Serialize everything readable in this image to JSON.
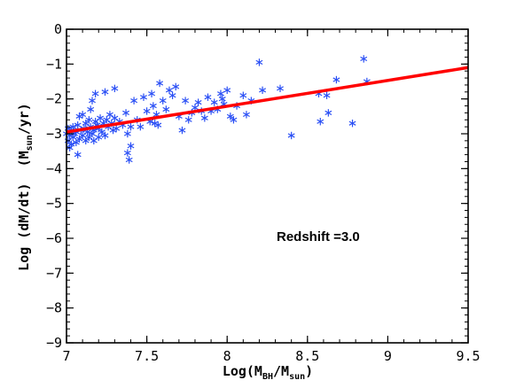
{
  "chart_data": {
    "type": "scatter",
    "x_label": {
      "pre": "Log(M",
      "sub1": "BH",
      "mid": "/M",
      "sub2": "sun",
      "post": ")"
    },
    "y_label": {
      "pre": "Log (dM/dt)  (M",
      "sub": "sun",
      "post": "/yr)"
    },
    "xlim": [
      7,
      9.5
    ],
    "ylim": [
      -9,
      0
    ],
    "x_ticks": [
      {
        "v": 7,
        "t": "7"
      },
      {
        "v": 7.5,
        "t": "7.5"
      },
      {
        "v": 8,
        "t": "8"
      },
      {
        "v": 8.5,
        "t": "8.5"
      },
      {
        "v": 9,
        "t": "9"
      },
      {
        "v": 9.5,
        "t": "9.5"
      }
    ],
    "y_ticks": [
      {
        "v": 0,
        "t": "0"
      },
      {
        "v": -1,
        "t": "−1"
      },
      {
        "v": -2,
        "t": "−2"
      },
      {
        "v": -3,
        "t": "−3"
      },
      {
        "v": -4,
        "t": "−4"
      },
      {
        "v": -5,
        "t": "−5"
      },
      {
        "v": -6,
        "t": "−6"
      },
      {
        "v": -7,
        "t": "−7"
      },
      {
        "v": -8,
        "t": "−8"
      },
      {
        "v": -9,
        "t": "−9"
      }
    ],
    "annotation": "Redshift =3.0",
    "fit_line": {
      "x": [
        7,
        9.5
      ],
      "y": [
        -2.95,
        -1.1
      ],
      "color": "#ff0000"
    },
    "marker_color": "#2a4ff5",
    "line_color": "#ff0000",
    "points": [
      [
        7.0,
        -3.0
      ],
      [
        7.01,
        -3.2
      ],
      [
        7.01,
        -2.85
      ],
      [
        7.02,
        -3.4
      ],
      [
        7.02,
        -3.05
      ],
      [
        7.03,
        -2.9
      ],
      [
        7.03,
        -3.3
      ],
      [
        7.04,
        -3.1
      ],
      [
        7.04,
        -2.8
      ],
      [
        7.05,
        -3.0
      ],
      [
        7.06,
        -3.25
      ],
      [
        7.06,
        -2.95
      ],
      [
        7.07,
        -3.6
      ],
      [
        7.07,
        -2.75
      ],
      [
        7.08,
        -3.15
      ],
      [
        7.08,
        -2.5
      ],
      [
        7.09,
        -2.9
      ],
      [
        7.1,
        -3.05
      ],
      [
        7.1,
        -2.45
      ],
      [
        7.11,
        -2.85
      ],
      [
        7.12,
        -3.2
      ],
      [
        7.12,
        -2.7
      ],
      [
        7.13,
        -2.95
      ],
      [
        7.14,
        -2.6
      ],
      [
        7.14,
        -3.1
      ],
      [
        7.15,
        -2.3
      ],
      [
        7.15,
        -2.8
      ],
      [
        7.16,
        -2.05
      ],
      [
        7.16,
        -3.0
      ],
      [
        7.17,
        -2.9
      ],
      [
        7.17,
        -3.2
      ],
      [
        7.18,
        -1.85
      ],
      [
        7.18,
        -2.65
      ],
      [
        7.19,
        -2.75
      ],
      [
        7.2,
        -3.1
      ],
      [
        7.2,
        -2.85
      ],
      [
        7.21,
        -2.55
      ],
      [
        7.22,
        -2.95
      ],
      [
        7.23,
        -2.7
      ],
      [
        7.24,
        -1.8
      ],
      [
        7.24,
        -3.05
      ],
      [
        7.25,
        -2.6
      ],
      [
        7.26,
        -2.8
      ],
      [
        7.27,
        -2.45
      ],
      [
        7.28,
        -2.7
      ],
      [
        7.29,
        -2.9
      ],
      [
        7.3,
        -1.7
      ],
      [
        7.3,
        -2.55
      ],
      [
        7.31,
        -2.85
      ],
      [
        7.33,
        -2.65
      ],
      [
        7.35,
        -2.75
      ],
      [
        7.37,
        -2.4
      ],
      [
        7.38,
        -3.0
      ],
      [
        7.38,
        -3.55
      ],
      [
        7.39,
        -3.75
      ],
      [
        7.4,
        -3.35
      ],
      [
        7.4,
        -2.8
      ],
      [
        7.42,
        -2.05
      ],
      [
        7.44,
        -2.6
      ],
      [
        7.46,
        -2.8
      ],
      [
        7.48,
        -1.95
      ],
      [
        7.5,
        -2.35
      ],
      [
        7.52,
        -2.65
      ],
      [
        7.53,
        -1.85
      ],
      [
        7.54,
        -2.2
      ],
      [
        7.55,
        -2.7
      ],
      [
        7.56,
        -2.45
      ],
      [
        7.57,
        -2.75
      ],
      [
        7.58,
        -1.55
      ],
      [
        7.6,
        -2.05
      ],
      [
        7.62,
        -2.3
      ],
      [
        7.64,
        -1.75
      ],
      [
        7.66,
        -1.9
      ],
      [
        7.68,
        -1.65
      ],
      [
        7.7,
        -2.5
      ],
      [
        7.72,
        -2.9
      ],
      [
        7.74,
        -2.05
      ],
      [
        7.76,
        -2.6
      ],
      [
        7.78,
        -2.4
      ],
      [
        7.8,
        -2.25
      ],
      [
        7.82,
        -2.1
      ],
      [
        7.84,
        -2.35
      ],
      [
        7.86,
        -2.55
      ],
      [
        7.88,
        -1.95
      ],
      [
        7.9,
        -2.35
      ],
      [
        7.92,
        -2.1
      ],
      [
        7.94,
        -2.3
      ],
      [
        7.96,
        -1.85
      ],
      [
        7.97,
        -2.0
      ],
      [
        7.98,
        -2.15
      ],
      [
        8.0,
        -1.75
      ],
      [
        8.02,
        -2.5
      ],
      [
        8.04,
        -2.6
      ],
      [
        8.06,
        -2.2
      ],
      [
        8.1,
        -1.9
      ],
      [
        8.12,
        -2.45
      ],
      [
        8.15,
        -2.05
      ],
      [
        8.2,
        -0.95
      ],
      [
        8.22,
        -1.75
      ],
      [
        8.33,
        -1.7
      ],
      [
        8.4,
        -3.05
      ],
      [
        8.57,
        -1.85
      ],
      [
        8.58,
        -2.65
      ],
      [
        8.62,
        -1.9
      ],
      [
        8.63,
        -2.4
      ],
      [
        8.68,
        -1.45
      ],
      [
        8.78,
        -2.7
      ],
      [
        8.85,
        -0.85
      ],
      [
        8.87,
        -1.5
      ]
    ]
  }
}
